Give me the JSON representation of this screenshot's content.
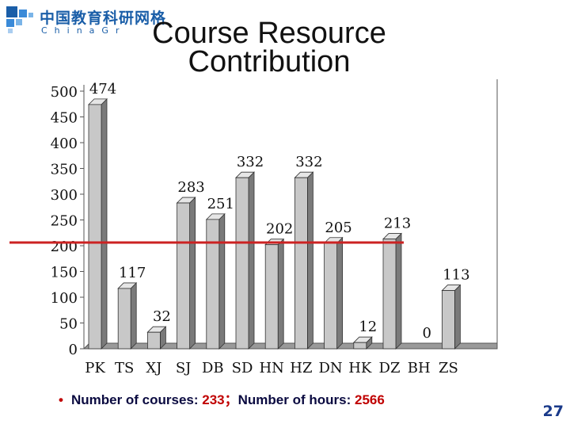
{
  "logo": {
    "name_cn": "中国教育科研网格",
    "name_en": "ChinaGr"
  },
  "title_line1": "Course Resource",
  "title_line2": "Contribution",
  "chart_data": {
    "type": "bar",
    "categories": [
      "PK",
      "TS",
      "XJ",
      "SJ",
      "DB",
      "SD",
      "HN",
      "HZ",
      "DN",
      "HK",
      "DZ",
      "BH",
      "ZS"
    ],
    "values": [
      474,
      117,
      32,
      283,
      251,
      332,
      202,
      332,
      205,
      12,
      213,
      0,
      113
    ],
    "ylim": [
      0,
      500
    ],
    "yticks": [
      "0",
      "50",
      "100",
      "150",
      "200",
      "250",
      "300",
      "350",
      "400",
      "450",
      "500"
    ],
    "grid": false,
    "reference_line": 200,
    "bar_color": "#c8c8c8",
    "reference_color": "#cc2222"
  },
  "summary": {
    "bullet": "•",
    "courses_label": "Number of courses: ",
    "courses_value": "233",
    "separator": "；",
    "hours_label": "Number of hours: ",
    "hours_value": "2566"
  },
  "page_number": "27"
}
